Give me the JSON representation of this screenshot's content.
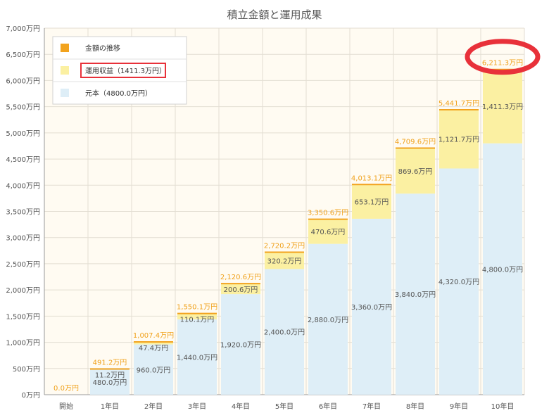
{
  "colors": {
    "principal": "#deeef7",
    "gain": "#fbf0a2",
    "total_marker": "#f2a31e",
    "total_label": "#f0a11b",
    "plot_bg": "#fffbf2",
    "grid": "#e3ded3",
    "highlight": "#e8313a"
  },
  "chart_data": {
    "type": "bar",
    "title": "積立金額と運用成果",
    "categories": [
      "開始",
      "1年目",
      "2年目",
      "3年目",
      "4年目",
      "5年目",
      "6年目",
      "7年目",
      "8年目",
      "9年目",
      "10年目"
    ],
    "ylim": [
      0,
      7000
    ],
    "yticks": [
      0,
      500,
      1000,
      1500,
      2000,
      2500,
      3000,
      3500,
      4000,
      4500,
      5000,
      5500,
      6000,
      6500,
      7000
    ],
    "ytick_labels": [
      "0万円",
      "500万円",
      "1,000万円",
      "1,500万円",
      "2,000万円",
      "2,500万円",
      "3,000万円",
      "3,500万円",
      "4,000万円",
      "4,500万円",
      "5,000万円",
      "5,500万円",
      "6,000万円",
      "6,500万円",
      "7,000万円"
    ],
    "series": [
      {
        "name": "元本（4800.0万円）",
        "values": [
          0,
          480.0,
          960.0,
          1440.0,
          1920.0,
          2400.0,
          2880.0,
          3360.0,
          3840.0,
          4320.0,
          4800.0
        ],
        "labels": [
          "",
          "480.0万円",
          "960.0万円",
          "1,440.0万円",
          "1,920.0万円",
          "2,400.0万円",
          "2,880.0万円",
          "3,360.0万円",
          "3,840.0万円",
          "4,320.0万円",
          "4,800.0万円"
        ]
      },
      {
        "name": "運用収益（1411.3万円）",
        "values": [
          0,
          11.2,
          47.4,
          110.1,
          200.6,
          320.2,
          470.6,
          653.1,
          869.6,
          1121.7,
          1411.3
        ],
        "labels": [
          "",
          "11.2万円",
          "47.4万円",
          "110.1万円",
          "200.6万円",
          "320.2万円",
          "470.6万円",
          "653.1万円",
          "869.6万円",
          "1,121.7万円",
          "1,411.3万円"
        ]
      },
      {
        "name": "金額の推移",
        "values": [
          0,
          491.2,
          1007.4,
          1550.1,
          2120.6,
          2720.2,
          3350.6,
          4013.1,
          4709.6,
          5441.7,
          6211.3
        ],
        "labels": [
          "0.0万円",
          "491.2万円",
          "1,007.4万円",
          "1,550.1万円",
          "2,120.6万円",
          "2,720.2万円",
          "3,350.6万円",
          "4,013.1万円",
          "4,709.6万円",
          "5,441.7万円",
          "6,211.3万円"
        ]
      }
    ],
    "legend": {
      "placement": "top-left",
      "items": [
        "金額の推移",
        "運用収益（1411.3万円）",
        "元本（4800.0万円）"
      ]
    },
    "grid": true
  }
}
